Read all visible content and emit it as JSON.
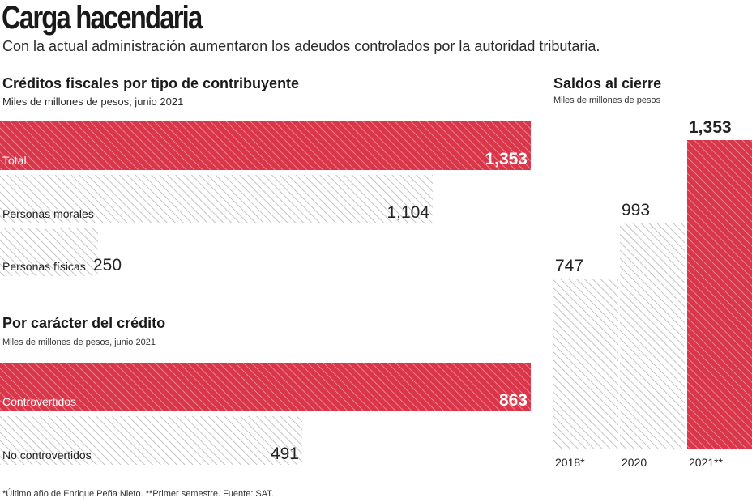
{
  "header": {
    "title": "Carga hacendaria",
    "subtitle": "Con la actual administración aumentaron los adeudos controlados por la autoridad tributaria."
  },
  "footnote": "*Último año de Enrique Peña Nieto. **Primer semestre. Fuente: SAT.",
  "colors": {
    "red": "#d9364a",
    "hatch_red": "#ffffff",
    "gray_hatch": "#bdbdbd",
    "text": "#1a1a1a"
  },
  "chart_data": [
    {
      "type": "bar",
      "orientation": "horizontal",
      "title": "Créditos fiscales por tipo de contribuyente",
      "subtitle": "Miles de millones de pesos, junio 2021",
      "unit": "Miles de millones de pesos",
      "xlim": [
        0,
        1353
      ],
      "categories": [
        "Total",
        "Personas morales",
        "Personas físicas"
      ],
      "labels": [
        "1,353",
        "1,104",
        "250"
      ],
      "values": [
        1353,
        1104,
        250
      ],
      "highlight": [
        true,
        false,
        false
      ]
    },
    {
      "type": "bar",
      "orientation": "horizontal",
      "title": "Por carácter del crédito",
      "subtitle": "Miles de millones de pesos, junio 2021",
      "unit": "Miles de millones de pesos",
      "xlim": [
        0,
        863
      ],
      "categories": [
        "Controvertidos",
        "No controvertidos"
      ],
      "labels": [
        "863",
        "491"
      ],
      "values": [
        863,
        491
      ],
      "highlight": [
        true,
        false
      ]
    },
    {
      "type": "bar",
      "orientation": "vertical",
      "title": "Saldos al cierre",
      "subtitle": "Miles de millones de pesos",
      "unit": "Miles de millones de pesos",
      "ylim": [
        0,
        1353
      ],
      "categories": [
        "2018*",
        "2020",
        "2021**"
      ],
      "labels": [
        "747",
        "993",
        "1,353"
      ],
      "values": [
        747,
        993,
        1353
      ],
      "highlight": [
        false,
        false,
        true
      ]
    }
  ]
}
